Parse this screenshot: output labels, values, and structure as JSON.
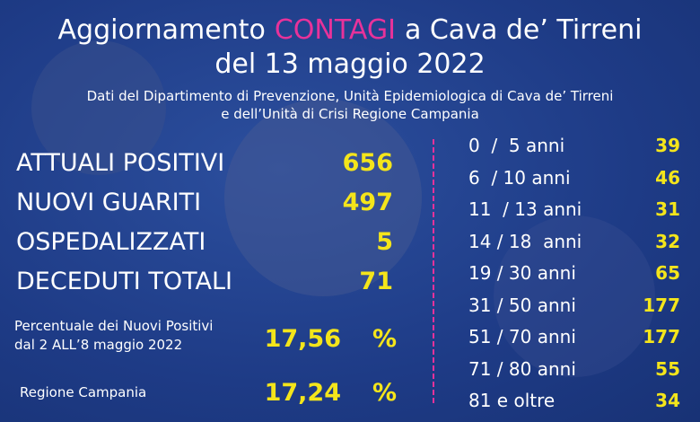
{
  "header": {
    "title_pre": "Aggiornamento",
    "title_highlight": "CONTAGI",
    "title_post": "a Cava de’ Tirreni",
    "date": "del 13 maggio 2022",
    "source_lines": [
      "Dati del Dipartimento di Prevenzione, Unità Epidemiologica di Cava de’ Tirreni",
      "e dell’Unità di Crisi Regione Campania"
    ]
  },
  "stats": [
    {
      "label": "ATTUALI POSITIVI",
      "value": 656
    },
    {
      "label": "NUOVI GUARITI",
      "value": 497
    },
    {
      "label": "OSPEDALIZZATI",
      "value": 5
    },
    {
      "label": "DECEDUTI TOTALI",
      "value": 71
    }
  ],
  "percentages": [
    {
      "label_lines": [
        "Percentuale dei Nuovi Positivi",
        "dal 2 ALL’8 maggio 2022"
      ],
      "value": "17,56",
      "unit": "%"
    },
    {
      "label_lines": [
        "Regione Campania"
      ],
      "value": "17,24",
      "unit": "%"
    }
  ],
  "age_groups": [
    {
      "label": "0  /  5 anni",
      "value": 39
    },
    {
      "label": "6  / 10 anni",
      "value": 46
    },
    {
      "label": "11  / 13 anni",
      "value": 31
    },
    {
      "label": "14 / 18  anni",
      "value": 32
    },
    {
      "label": "19 / 30 anni",
      "value": 65
    },
    {
      "label": "31 / 50 anni",
      "value": 177
    },
    {
      "label": "51 / 70 anni",
      "value": 177
    },
    {
      "label": "71 / 80 anni",
      "value": 55
    },
    {
      "label": "81 e oltre",
      "value": 34
    }
  ]
}
